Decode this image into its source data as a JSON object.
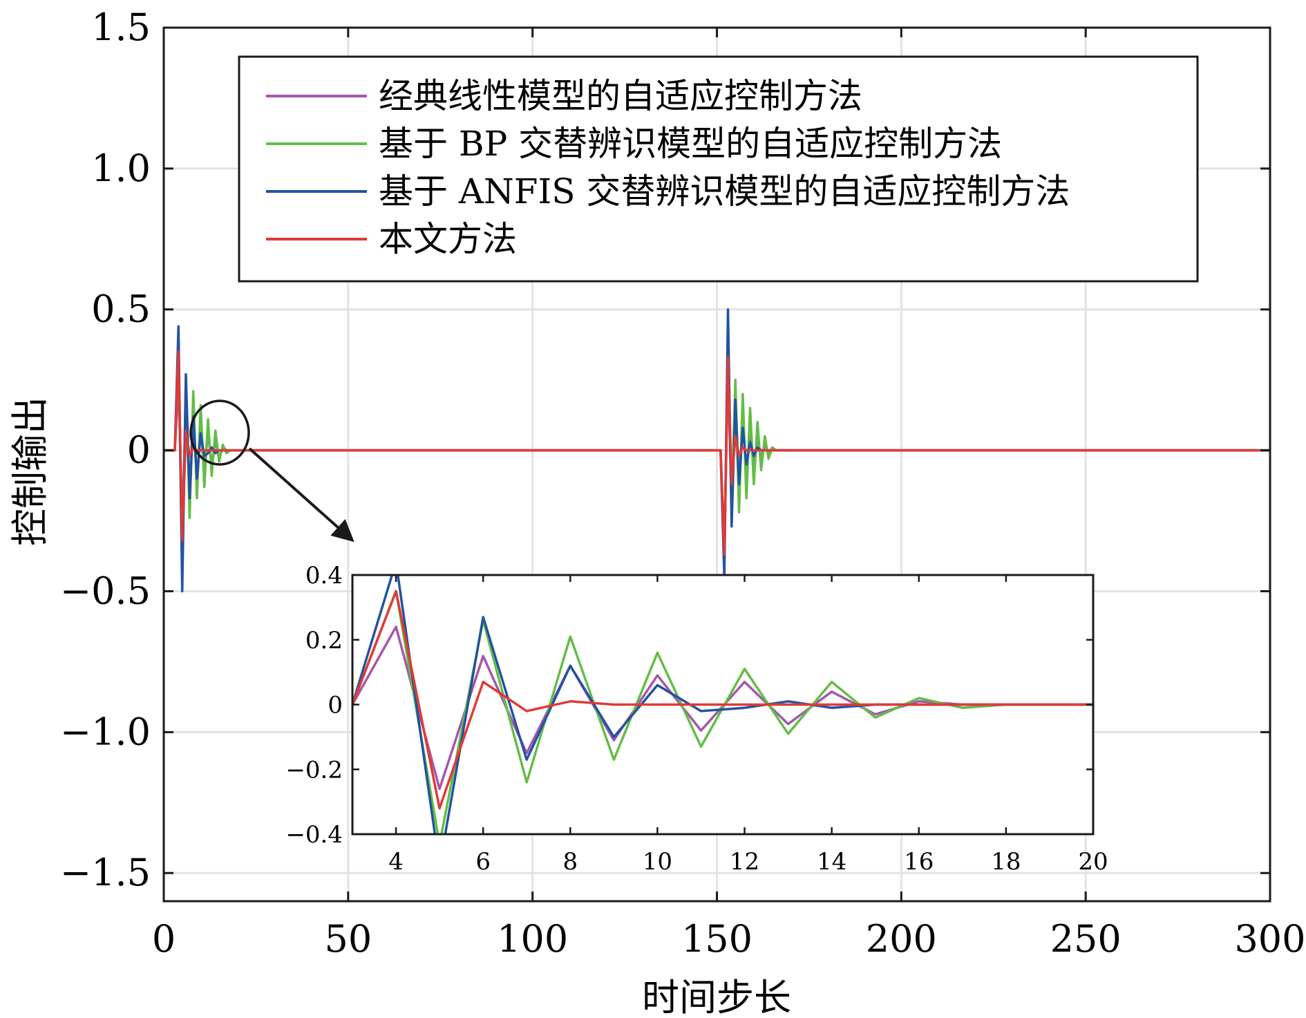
{
  "chart_data": {
    "type": "line",
    "ylabel": "控制输出",
    "xlabel": "时间步长",
    "xlim": [
      0,
      300
    ],
    "ylim": [
      -1.6,
      1.5
    ],
    "xticks": [
      0,
      50,
      100,
      150,
      200,
      250,
      300
    ],
    "xtick_labels": [
      "0",
      "50",
      "100",
      "150",
      "200",
      "250",
      "300"
    ],
    "yticks": [
      -1.5,
      -1.0,
      -0.5,
      0,
      0.5,
      1.0,
      1.5
    ],
    "ytick_labels": [
      "−1.5",
      "−1.0",
      "−0.5",
      "0",
      "0.5",
      "1.0",
      "1.5"
    ],
    "grid": true,
    "legend_position": "top",
    "series": [
      {
        "name": "经典线性模型的自适应控制方法",
        "color": "#a557a9",
        "x": [
          0,
          3,
          4,
          5,
          6,
          7,
          8,
          9,
          10,
          11,
          12,
          13,
          14,
          15,
          16,
          17,
          18,
          20,
          150,
          151,
          152,
          153,
          154,
          155,
          156,
          157,
          158,
          159,
          160,
          161,
          162,
          163,
          164,
          165,
          166,
          168,
          300
        ],
        "y": [
          0,
          0,
          0.24,
          -0.26,
          0.15,
          -0.15,
          0.12,
          -0.11,
          0.09,
          -0.08,
          0.07,
          -0.06,
          0.04,
          -0.03,
          0.01,
          0.0,
          0.0,
          0,
          0,
          0.0,
          -0.35,
          0.28,
          -0.2,
          0.18,
          -0.15,
          0.12,
          -0.1,
          0.08,
          -0.06,
          0.05,
          -0.03,
          0.02,
          -0.01,
          0.01,
          0,
          0,
          0
        ]
      },
      {
        "name": "基于 BP 交替辨识模型的自适应控制方法",
        "color": "#63bd46",
        "x": [
          0,
          3,
          4,
          5,
          6,
          7,
          8,
          9,
          10,
          11,
          12,
          13,
          14,
          15,
          16,
          17,
          18,
          20,
          150,
          151,
          152,
          153,
          154,
          155,
          156,
          157,
          158,
          159,
          160,
          161,
          162,
          163,
          164,
          165,
          166,
          168,
          300
        ],
        "y": [
          0,
          0,
          0.35,
          -0.43,
          0.26,
          -0.24,
          0.21,
          -0.17,
          0.16,
          -0.13,
          0.11,
          -0.09,
          0.07,
          -0.04,
          0.02,
          -0.01,
          0.0,
          0,
          0,
          0.0,
          -0.4,
          0.4,
          -0.2,
          0.25,
          -0.22,
          0.2,
          -0.17,
          0.15,
          -0.12,
          0.1,
          -0.07,
          0.05,
          -0.03,
          0.01,
          0,
          0,
          0
        ]
      },
      {
        "name": "基于 ANFIS 交替辨识模型的自适应控制方法",
        "color": "#2452a2",
        "x": [
          0,
          3,
          4,
          5,
          6,
          7,
          8,
          9,
          10,
          11,
          12,
          13,
          14,
          15,
          16,
          17,
          18,
          20,
          150,
          151,
          152,
          153,
          154,
          155,
          156,
          157,
          158,
          159,
          160,
          161,
          162,
          163,
          164,
          165,
          166,
          168,
          300
        ],
        "y": [
          0,
          0,
          0.44,
          -0.5,
          0.27,
          -0.17,
          0.12,
          -0.1,
          0.06,
          -0.02,
          -0.01,
          0.01,
          -0.01,
          0.0,
          0.0,
          0.0,
          0.0,
          0,
          0,
          0.0,
          -0.45,
          0.5,
          -0.27,
          0.18,
          -0.12,
          0.08,
          -0.05,
          0.03,
          -0.02,
          0.01,
          0.0,
          0.0,
          0.0,
          0.0,
          0,
          0,
          0
        ]
      },
      {
        "name": "本文方法",
        "color": "#e03a36",
        "x": [
          0,
          3,
          4,
          5,
          6,
          7,
          8,
          9,
          10,
          11,
          12,
          13,
          14,
          15,
          16,
          17,
          18,
          20,
          150,
          151,
          152,
          153,
          154,
          155,
          156,
          157,
          158,
          159,
          160,
          161,
          162,
          163,
          164,
          165,
          166,
          168,
          300
        ],
        "y": [
          0,
          0,
          0.35,
          -0.32,
          0.07,
          -0.02,
          0.01,
          0.0,
          -0.0,
          0.0,
          0.0,
          0.0,
          0.0,
          0.0,
          0.0,
          0.0,
          0.0,
          0,
          0,
          0.0,
          -0.37,
          0.33,
          -0.12,
          0.05,
          -0.02,
          0.01,
          0.0,
          0.0,
          0.0,
          0.0,
          0.0,
          0.0,
          0.0,
          0.0,
          0,
          0,
          0
        ]
      }
    ],
    "inset": {
      "xlim": [
        3,
        20
      ],
      "ylim": [
        -0.4,
        0.4
      ],
      "xticks": [
        4,
        6,
        8,
        10,
        12,
        14,
        16,
        18,
        20
      ],
      "xtick_labels": [
        "4",
        "6",
        "8",
        "10",
        "12",
        "14",
        "16",
        "18",
        "20"
      ],
      "yticks": [
        -0.4,
        -0.2,
        0,
        0.2,
        0.4
      ],
      "ytick_labels": [
        "−0.4",
        "−0.2",
        "0",
        "0.2",
        "0.4"
      ],
      "zoom_center": [
        15,
        0.05
      ],
      "series": [
        {
          "name": "经典线性模型的自适应控制方法",
          "color": "#a557a9",
          "x": [
            3,
            4,
            5,
            6,
            7,
            8,
            9,
            10,
            11,
            12,
            13,
            14,
            15,
            16,
            17,
            18,
            19,
            20
          ],
          "y": [
            0,
            0.24,
            -0.26,
            0.15,
            -0.15,
            0.12,
            -0.11,
            0.09,
            -0.08,
            0.07,
            -0.06,
            0.04,
            -0.03,
            0.01,
            0.0,
            0.0,
            0.0,
            0.0
          ]
        },
        {
          "name": "基于 BP 交替辨识模型的自适应控制方法",
          "color": "#63bd46",
          "x": [
            3,
            4,
            5,
            6,
            7,
            8,
            9,
            10,
            11,
            12,
            13,
            14,
            15,
            16,
            17,
            18,
            19,
            20
          ],
          "y": [
            0,
            0.35,
            -0.43,
            0.26,
            -0.24,
            0.21,
            -0.17,
            0.16,
            -0.13,
            0.11,
            -0.09,
            0.07,
            -0.04,
            0.02,
            -0.01,
            0.0,
            0.0,
            0.0
          ]
        },
        {
          "name": "基于 ANFIS 交替辨识模型的自适应控制方法",
          "color": "#2452a2",
          "x": [
            3,
            4,
            5,
            6,
            7,
            8,
            9,
            10,
            11,
            12,
            13,
            14,
            15,
            16,
            17,
            18,
            19,
            20
          ],
          "y": [
            0,
            0.44,
            -0.5,
            0.27,
            -0.17,
            0.12,
            -0.1,
            0.06,
            -0.02,
            -0.01,
            0.01,
            -0.01,
            0.0,
            0.0,
            0.0,
            0.0,
            0.0,
            0.0
          ]
        },
        {
          "name": "本文方法",
          "color": "#e03a36",
          "x": [
            3,
            4,
            5,
            6,
            7,
            8,
            9,
            10,
            11,
            12,
            13,
            14,
            15,
            16,
            17,
            18,
            19,
            20
          ],
          "y": [
            0,
            0.35,
            -0.32,
            0.07,
            -0.02,
            0.01,
            0.0,
            -0.0,
            0.0,
            0.0,
            0.0,
            0.0,
            0.0,
            0.0,
            0.0,
            0.0,
            0.0,
            0.0
          ]
        }
      ]
    }
  }
}
